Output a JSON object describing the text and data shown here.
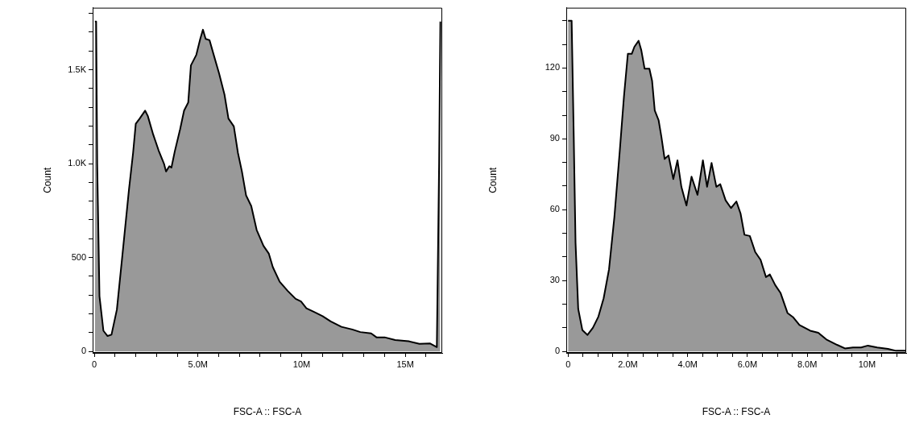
{
  "chart_data": [
    {
      "type": "area",
      "xlabel": "FSC-A :: FSC-A",
      "ylabel": "Count",
      "color": "#999999",
      "x": [
        30000,
        90000,
        140000,
        250000,
        440000,
        640000,
        830000,
        1090000,
        1350000,
        1670000,
        1870000,
        2000000,
        2190000,
        2450000,
        2580000,
        2840000,
        3100000,
        3360000,
        3460000,
        3620000,
        3720000,
        3880000,
        4140000,
        4330000,
        4530000,
        4660000,
        4920000,
        5110000,
        5240000,
        5370000,
        5560000,
        5760000,
        6020000,
        6280000,
        6470000,
        6730000,
        6930000,
        7120000,
        7320000,
        7570000,
        7830000,
        8160000,
        8420000,
        8610000,
        8940000,
        9330000,
        9710000,
        9970000,
        10230000,
        10620000,
        11010000,
        11400000,
        11920000,
        12440000,
        12830000,
        13350000,
        13610000,
        14000000,
        14510000,
        15160000,
        15680000,
        16200000,
        16520000,
        16630000,
        16690000
      ],
      "values": [
        1756,
        1756,
        1000,
        294,
        110,
        82,
        89,
        223,
        506,
        859,
        1056,
        1212,
        1240,
        1282,
        1254,
        1155,
        1071,
        1000,
        958,
        986,
        979,
        1064,
        1184,
        1282,
        1325,
        1523,
        1579,
        1664,
        1713,
        1664,
        1657,
        1579,
        1480,
        1367,
        1240,
        1198,
        1056,
        958,
        831,
        774,
        647,
        562,
        520,
        449,
        371,
        322,
        280,
        266,
        230,
        209,
        188,
        160,
        131,
        117,
        103,
        96,
        75,
        75,
        61,
        54,
        40,
        42,
        23,
        1000,
        1756
      ],
      "xlim": [
        -80000,
        16780000
      ],
      "ylim": [
        -8,
        1830
      ],
      "xticks": [
        {
          "value": 0,
          "label": "0"
        },
        {
          "value": 1000000,
          "label": null
        },
        {
          "value": 2000000,
          "label": null
        },
        {
          "value": 3000000,
          "label": null
        },
        {
          "value": 4000000,
          "label": null
        },
        {
          "value": 5000000,
          "label": "5.0M"
        },
        {
          "value": 6000000,
          "label": null
        },
        {
          "value": 7000000,
          "label": null
        },
        {
          "value": 8000000,
          "label": null
        },
        {
          "value": 9000000,
          "label": null
        },
        {
          "value": 10000000,
          "label": "10M"
        },
        {
          "value": 11000000,
          "label": null
        },
        {
          "value": 12000000,
          "label": null
        },
        {
          "value": 13000000,
          "label": null
        },
        {
          "value": 14000000,
          "label": null
        },
        {
          "value": 15000000,
          "label": "15M"
        },
        {
          "value": 16000000,
          "label": null
        }
      ],
      "yticks": [
        0,
        {
          "value": 100,
          "label": null
        },
        {
          "value": 200,
          "label": null
        },
        {
          "value": 300,
          "label": null
        },
        {
          "value": 400,
          "label": null
        },
        500,
        {
          "value": 600,
          "label": null
        },
        {
          "value": 700,
          "label": null
        },
        {
          "value": 800,
          "label": null
        },
        {
          "value": 900,
          "label": null
        },
        {
          "value": 1000,
          "label": "1.0K"
        },
        {
          "value": 1100,
          "label": null
        },
        {
          "value": 1200,
          "label": null
        },
        {
          "value": 1300,
          "label": null
        },
        {
          "value": 1400,
          "label": null
        },
        {
          "value": 1500,
          "label": "1.5K"
        },
        {
          "value": 1600,
          "label": null
        },
        {
          "value": 1700,
          "label": null
        },
        {
          "value": 1800,
          "label": null
        }
      ]
    },
    {
      "type": "area",
      "xlabel": "FSC-A :: FSC-A",
      "ylabel": "Count",
      "color": "#999999",
      "x": [
        0,
        120000,
        190000,
        250000,
        340000,
        480000,
        650000,
        830000,
        1010000,
        1190000,
        1370000,
        1550000,
        1730000,
        1870000,
        2000000,
        2130000,
        2220000,
        2360000,
        2450000,
        2560000,
        2720000,
        2810000,
        2900000,
        3030000,
        3120000,
        3230000,
        3360000,
        3520000,
        3660000,
        3790000,
        3960000,
        4130000,
        4330000,
        4510000,
        4650000,
        4800000,
        4960000,
        5090000,
        5270000,
        5450000,
        5630000,
        5770000,
        5900000,
        6080000,
        6260000,
        6440000,
        6620000,
        6750000,
        6930000,
        7110000,
        7340000,
        7520000,
        7740000,
        8100000,
        8370000,
        8640000,
        9000000,
        9260000,
        9530000,
        9800000,
        10030000,
        10340000,
        10700000,
        10970000,
        11310000
      ],
      "values": [
        140,
        140,
        91,
        46,
        18,
        9,
        7,
        10,
        14.6,
        22.5,
        34.8,
        57,
        85,
        108,
        126,
        126,
        129,
        131.5,
        127.5,
        119.7,
        119.7,
        114.6,
        102,
        97.8,
        91,
        81.5,
        83,
        73,
        80.9,
        69.7,
        61.8,
        74,
        66.3,
        80.9,
        69.7,
        79.8,
        69.7,
        70.8,
        64,
        60.7,
        63.5,
        58.4,
        49.4,
        48.9,
        42.1,
        38.8,
        31.5,
        32.6,
        28.1,
        24.7,
        16.3,
        14.6,
        11.2,
        8.8,
        7.9,
        5.1,
        2.8,
        1.3,
        1.7,
        1.7,
        2.5,
        1.7,
        1.1,
        0.3,
        0.3
      ],
      "xlim": [
        -60000,
        11310000
      ],
      "ylim": [
        -0.6,
        145.5
      ],
      "xticks": [
        {
          "value": 0,
          "label": "0"
        },
        {
          "value": 500000,
          "label": null
        },
        {
          "value": 1000000,
          "label": null
        },
        {
          "value": 1500000,
          "label": null
        },
        {
          "value": 2000000,
          "label": "2.0M"
        },
        {
          "value": 2500000,
          "label": null
        },
        {
          "value": 3000000,
          "label": null
        },
        {
          "value": 3500000,
          "label": null
        },
        {
          "value": 4000000,
          "label": "4.0M"
        },
        {
          "value": 4500000,
          "label": null
        },
        {
          "value": 5000000,
          "label": null
        },
        {
          "value": 5500000,
          "label": null
        },
        {
          "value": 6000000,
          "label": "6.0M"
        },
        {
          "value": 6500000,
          "label": null
        },
        {
          "value": 7000000,
          "label": null
        },
        {
          "value": 7500000,
          "label": null
        },
        {
          "value": 8000000,
          "label": "8.0M"
        },
        {
          "value": 8500000,
          "label": null
        },
        {
          "value": 9000000,
          "label": null
        },
        {
          "value": 9500000,
          "label": null
        },
        {
          "value": 10000000,
          "label": "10M"
        },
        {
          "value": 10500000,
          "label": null
        },
        {
          "value": 11000000,
          "label": null
        }
      ],
      "yticks": [
        0,
        {
          "value": 10,
          "label": null
        },
        {
          "value": 20,
          "label": null
        },
        30,
        {
          "value": 40,
          "label": null
        },
        {
          "value": 50,
          "label": null
        },
        60,
        {
          "value": 70,
          "label": null
        },
        {
          "value": 80,
          "label": null
        },
        90,
        {
          "value": 100,
          "label": null
        },
        {
          "value": 110,
          "label": null
        },
        120,
        {
          "value": 130,
          "label": null
        },
        {
          "value": 140,
          "label": null
        }
      ]
    }
  ]
}
